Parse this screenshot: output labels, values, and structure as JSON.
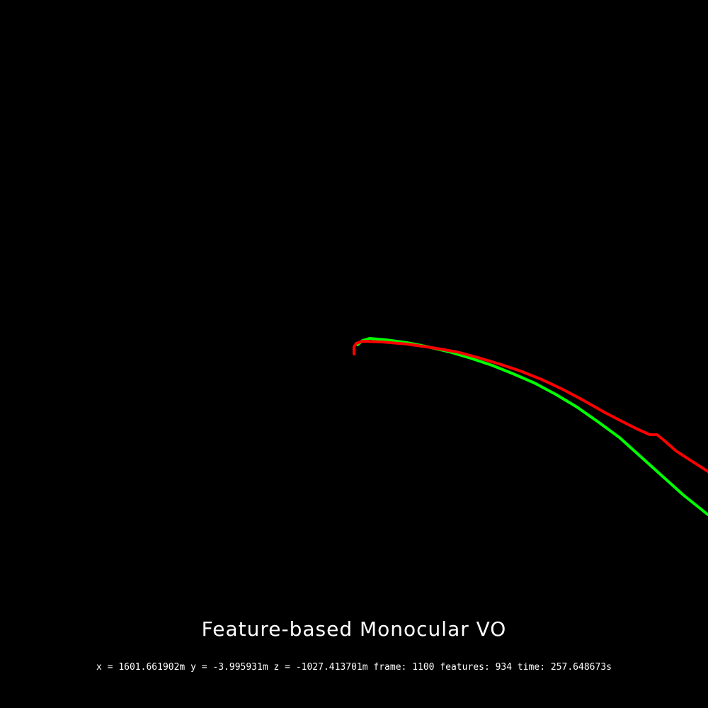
{
  "window": {
    "title": "Feature-based Monocular VO"
  },
  "status": {
    "x_label": "x = ",
    "x_value": "1601.661902m",
    "y_label": " y = ",
    "y_value": "-3.995931m",
    "z_label": " z = ",
    "z_value": "-1027.413701m",
    "frame_label": " frame: ",
    "frame_value": "1100",
    "features_label": " features: ",
    "features_value": "934",
    "time_label": " time: ",
    "time_value": "257.648673s"
  },
  "trajectories": {
    "ground_truth": {
      "color": "#00ff00",
      "points": [
        [
          505,
          487
        ],
        [
          512,
          481
        ],
        [
          522,
          478
        ],
        [
          545,
          480
        ],
        [
          575,
          484
        ],
        [
          605,
          490
        ],
        [
          635,
          497
        ],
        [
          665,
          506
        ],
        [
          695,
          516
        ],
        [
          725,
          528
        ],
        [
          755,
          541
        ],
        [
          785,
          557
        ],
        [
          815,
          575
        ],
        [
          845,
          596
        ],
        [
          875,
          618
        ],
        [
          905,
          645
        ],
        [
          935,
          672
        ],
        [
          965,
          699
        ],
        [
          1000,
          727
        ]
      ]
    },
    "estimated": {
      "color": "#ff0000",
      "points": [
        [
          500,
          500
        ],
        [
          500,
          490
        ],
        [
          503,
          485
        ],
        [
          512,
          482
        ],
        [
          540,
          483
        ],
        [
          575,
          486
        ],
        [
          610,
          491
        ],
        [
          645,
          497
        ],
        [
          675,
          505
        ],
        [
          705,
          514
        ],
        [
          735,
          524
        ],
        [
          765,
          536
        ],
        [
          795,
          550
        ],
        [
          825,
          566
        ],
        [
          855,
          583
        ],
        [
          880,
          596
        ],
        [
          900,
          606
        ],
        [
          918,
          614
        ],
        [
          928,
          614
        ],
        [
          938,
          622
        ],
        [
          955,
          637
        ],
        [
          975,
          650
        ],
        [
          1000,
          666
        ]
      ]
    }
  }
}
